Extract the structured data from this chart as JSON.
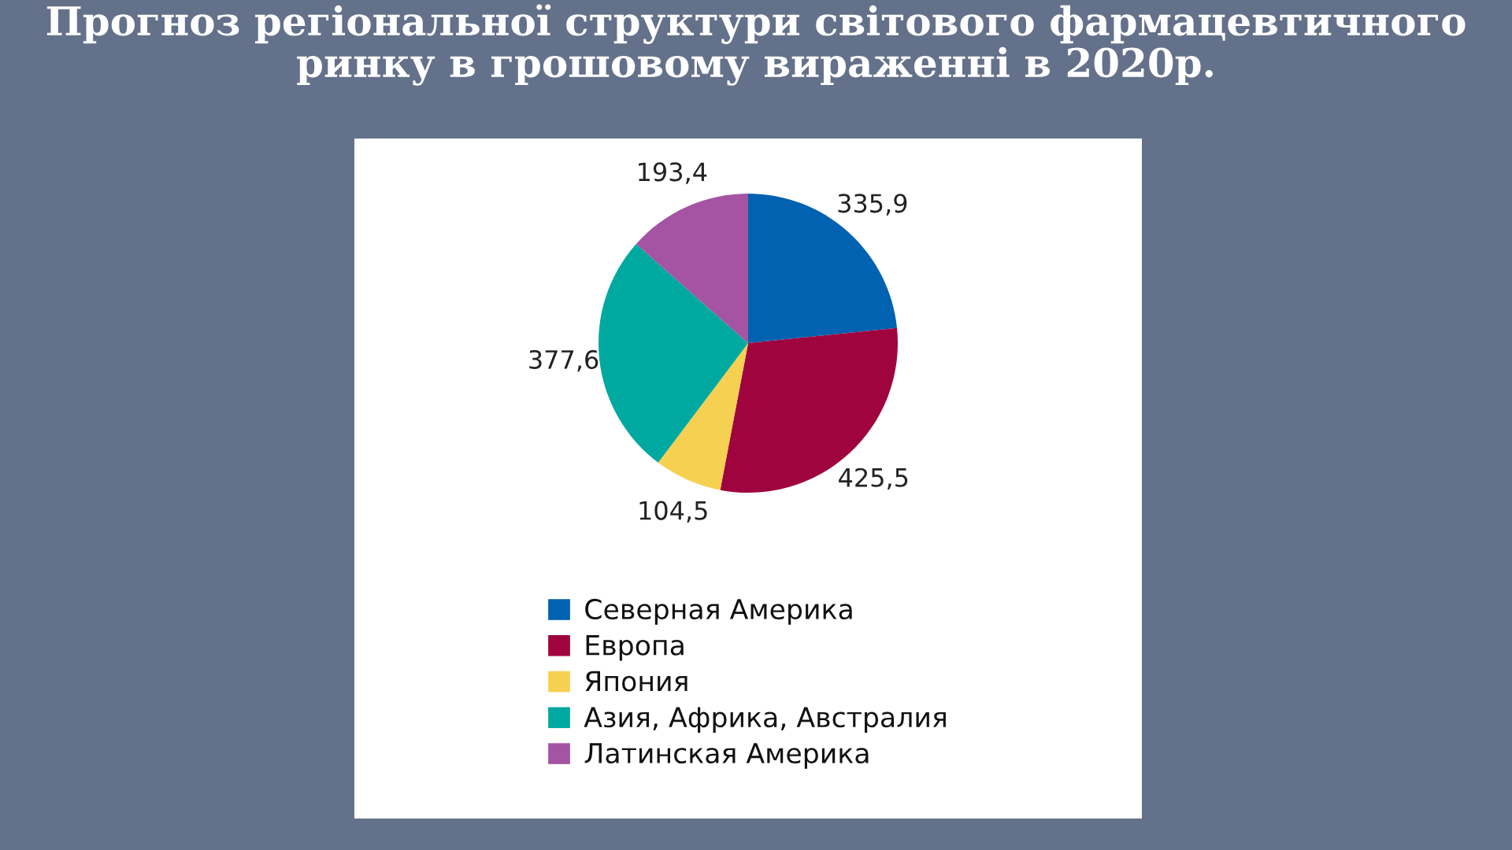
{
  "chart_data": {
    "type": "pie",
    "title": "Прогноз регіональної структури світового фармацевтичного ринку в грошовому вираженні в 2020р.",
    "categories": [
      "Северная Америка",
      "Европа",
      "Япония",
      "Азия, Африка, Австралия",
      "Латинская Америка"
    ],
    "values": [
      335.9,
      425.5,
      104.5,
      377.6,
      193.4
    ],
    "colors": [
      "#0062b0",
      "#a0043e",
      "#f6d050",
      "#00a9a0",
      "#a454a2"
    ],
    "value_labels": [
      "335,9",
      "425,5",
      "104,5",
      "377,6",
      "193,4"
    ],
    "legend": "bottom"
  }
}
